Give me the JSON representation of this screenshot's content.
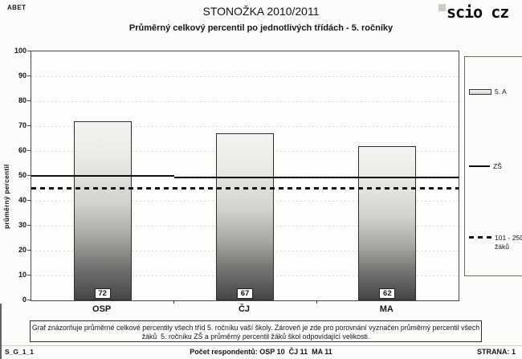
{
  "header": {
    "corner_code": "ABET",
    "title": "STONOŽKA 2010/2011",
    "subtitle": "Průměrný celkový percentil po jednotlivých třídách - 5. ročníky",
    "logo_text": "scio cz"
  },
  "chart_data": {
    "type": "bar",
    "title": "Průměrný celkový percentil po jednotlivých třídách - 5. ročníky",
    "categories": [
      "OSP",
      "ČJ",
      "MA"
    ],
    "values": [
      72,
      67,
      62
    ],
    "series_name": "5. A",
    "ylabel": "průměrný percentil",
    "ylim": [
      0,
      100
    ],
    "ytick_step": 10,
    "grid": "horizontal-dotted",
    "bar_style": "vertical-gradient-light-to-dark",
    "legend_position": "right",
    "reference_lines": [
      {
        "label": "ZŠ",
        "style": "solid",
        "segments": [
          {
            "from_frac": 0.0,
            "to_frac": 0.335,
            "value": 50
          },
          {
            "from_frac": 0.335,
            "to_frac": 1.0,
            "value": 49.4
          }
        ]
      },
      {
        "label": "101 - 250 žáků",
        "style": "dashed",
        "value": 45
      }
    ]
  },
  "legend": {
    "items": [
      {
        "label": "5. A",
        "swatch": "bar"
      },
      {
        "label": "ZŠ",
        "swatch": "solid-line"
      },
      {
        "label": "101 - 250",
        "label2": "žáků",
        "swatch": "dashed-line"
      }
    ]
  },
  "note": {
    "line1": "Graf znázorňuje průměrné celkové percentily všech tříd 5. ročníku vaší školy. Zároveň je zde pro porovnání vyznačen průměrný percentil všech",
    "line2": "žáků  5. ročníku ZŠ a průměrný percentil žáků škol odpovídající velikosti."
  },
  "footer": {
    "left_code": "S_G_1_1",
    "center_text": "Počet respondentů: OSP 10  ČJ 11  MA 11",
    "right_text": "STRANA: 1"
  }
}
